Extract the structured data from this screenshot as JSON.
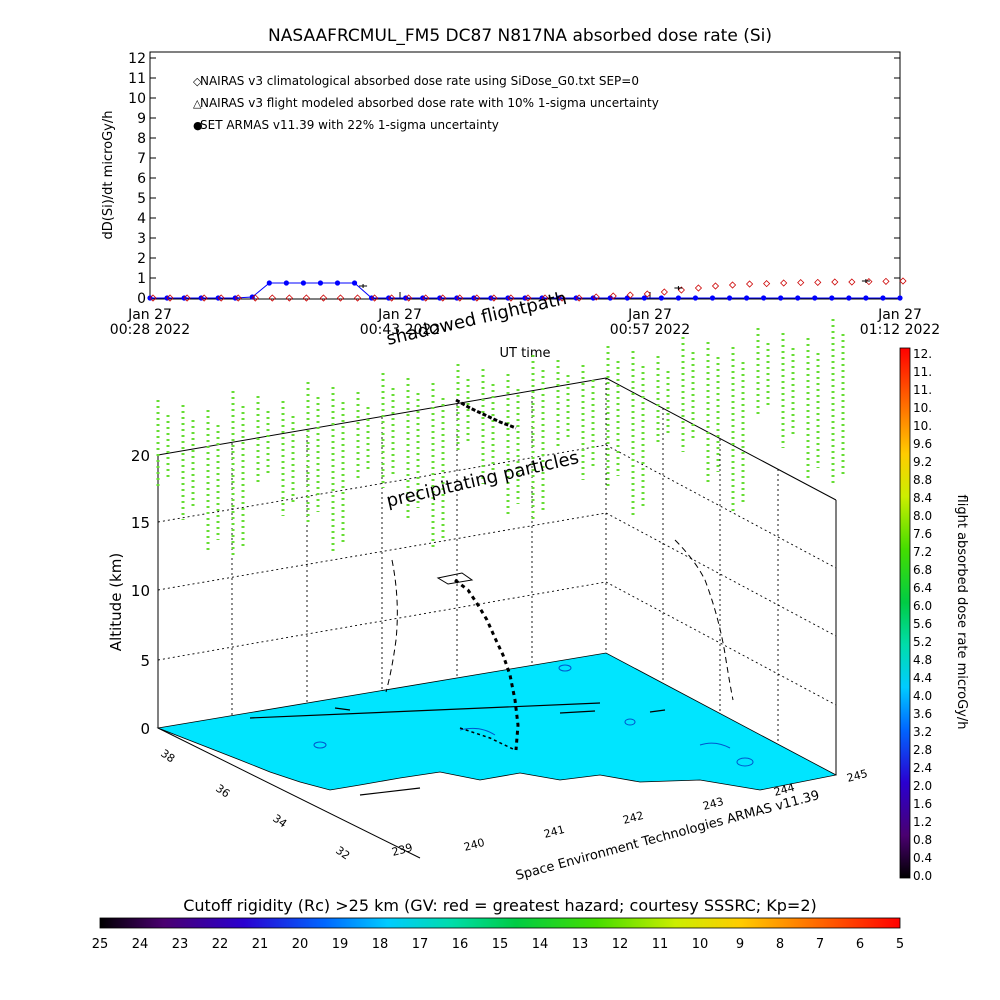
{
  "chart_data": [
    {
      "type": "line",
      "title": "NASAAFRCMUL_FM5 DC87 N817NA absorbed dose rate (Si)",
      "xlabel": "UT time",
      "ylabel": "dD(Si)/dt microGy/h",
      "ylim": [
        0,
        12
      ],
      "yticks": [
        "0",
        "1",
        "2",
        "3",
        "4",
        "5",
        "6",
        "7",
        "8",
        "9",
        "10",
        "11",
        "12"
      ],
      "xticks": [
        {
          "l1": "Jan 27",
          "l2": "00:28 2022"
        },
        {
          "l1": "Jan 27",
          "l2": "00:43 2022"
        },
        {
          "l1": "Jan 27",
          "l2": "00:57 2022"
        },
        {
          "l1": "Jan 27",
          "l2": "01:12 2022"
        }
      ],
      "legend": [
        {
          "symbol": "◇",
          "text": "NAIRAS v3 climatological absorbed dose rate using SiDose_G0.txt SEP=0",
          "color": "#cc0000"
        },
        {
          "symbol": "△",
          "text": "NAIRAS v3 flight modeled absorbed dose rate with 10% 1-sigma uncertainty",
          "color": "#000000"
        },
        {
          "symbol": "●",
          "text": "SET ARMAS v11.39 with 22% 1-sigma uncertainty",
          "color": "#0000ff"
        }
      ],
      "series": [
        {
          "name": "SET ARMAS v11.39 with 22% 1-sigma uncertainty",
          "color": "#0000ff",
          "x": [
            0,
            1,
            2,
            3,
            4,
            5,
            6,
            7,
            8,
            9,
            10,
            11,
            12,
            13,
            14,
            15,
            16,
            17,
            18,
            19,
            20,
            21,
            22,
            23,
            24,
            25,
            26,
            27,
            28,
            29,
            30,
            31,
            32,
            33,
            34,
            35,
            36,
            37,
            38,
            39,
            40,
            41,
            42,
            43,
            44
          ],
          "y": [
            0,
            0,
            0,
            0,
            0,
            0,
            0.05,
            0.75,
            0.75,
            0.75,
            0.75,
            0.75,
            0.75,
            0,
            0,
            0,
            0,
            0,
            0,
            0,
            0,
            0,
            0,
            0,
            0,
            0,
            0,
            0,
            0,
            0,
            0,
            0,
            0,
            0,
            0,
            0,
            0,
            0,
            0,
            0,
            0,
            0,
            0,
            0,
            0
          ]
        },
        {
          "name": "NAIRAS v3 climatological absorbed dose rate using SiDose_G0.txt SEP=0",
          "color": "#cc0000",
          "x": [
            0,
            1,
            2,
            3,
            4,
            5,
            6,
            7,
            8,
            9,
            10,
            11,
            12,
            13,
            14,
            15,
            16,
            17,
            18,
            19,
            20,
            21,
            22,
            23,
            24,
            25,
            26,
            27,
            28,
            29,
            30,
            31,
            32,
            33,
            34,
            35,
            36,
            37,
            38,
            39,
            40,
            41,
            42,
            43,
            44
          ],
          "y": [
            0,
            0,
            0,
            0,
            0,
            0,
            0,
            0,
            0,
            0,
            0,
            0,
            0,
            0,
            0,
            0,
            0,
            0,
            0,
            0,
            0,
            0,
            0,
            0,
            0,
            0,
            0.05,
            0.1,
            0.15,
            0.2,
            0.3,
            0.4,
            0.5,
            0.6,
            0.65,
            0.7,
            0.72,
            0.75,
            0.77,
            0.78,
            0.8,
            0.8,
            0.82,
            0.83,
            0.85
          ]
        }
      ]
    },
    {
      "type": "heatmap",
      "zlabel": "Altitude (km)",
      "zticks": [
        "0",
        "5",
        "10",
        "15",
        "20"
      ],
      "x_axis_label": "Space Environment Technologies ARMAS v11.39",
      "x_ticks": [
        "239",
        "240",
        "241",
        "242",
        "243",
        "244",
        "245"
      ],
      "y_ticks": [
        "32",
        "34",
        "36",
        "38"
      ],
      "annotations": [
        "shadowed flightpath",
        "precipitating particles"
      ],
      "colorbar_label": "flight absorbed dose rate microGy/h",
      "colorbar_ticks": [
        "0.0",
        "0.4",
        "0.8",
        "1.2",
        "1.6",
        "2.0",
        "2.4",
        "2.8",
        "3.2",
        "3.6",
        "4.0",
        "4.4",
        "4.8",
        "5.2",
        "5.6",
        "6.0",
        "6.4",
        "6.8",
        "7.2",
        "7.6",
        "8.0",
        "8.4",
        "8.8",
        "9.2",
        "9.6",
        "10.",
        "10.",
        "11.",
        "11.",
        "12."
      ],
      "surface_color": "#00e5ff",
      "particle_color": "#66dd33"
    },
    {
      "type": "heatmap",
      "title": "Cutoff rigidity (Rc) >25 km (GV: red = greatest hazard; courtesy SSSRC; Kp=2)",
      "ticks": [
        "25",
        "24",
        "23",
        "22",
        "21",
        "20",
        "19",
        "18",
        "17",
        "16",
        "15",
        "14",
        "13",
        "12",
        "11",
        "10",
        "9",
        "8",
        "7",
        "6",
        "5"
      ]
    }
  ]
}
